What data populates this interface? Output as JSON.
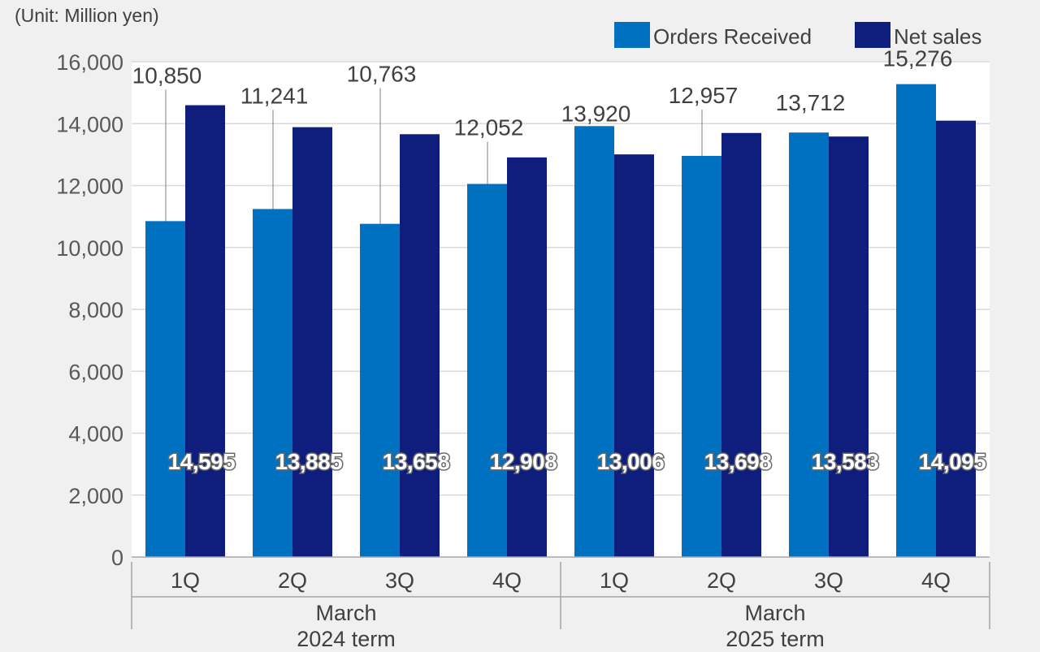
{
  "unit_label": "(Unit: Million yen)",
  "colors": {
    "orders": "#0070c0",
    "sales": "#0f1e7d",
    "grid": "#d9d9d9",
    "plot_bg": "#ffffff",
    "page_bg": "#f0f0f0",
    "connector": "#7f7f7f"
  },
  "chart_data": {
    "type": "bar",
    "categories": [
      "1Q",
      "2Q",
      "3Q",
      "4Q",
      "1Q",
      "2Q",
      "3Q",
      "4Q"
    ],
    "groups": [
      {
        "label": "March\n2024 term",
        "line1": "March",
        "line2": "2024 term",
        "span": [
          0,
          3
        ]
      },
      {
        "label": "March\n2025 term",
        "line1": "March",
        "line2": "2025 term",
        "span": [
          4,
          7
        ]
      }
    ],
    "series": [
      {
        "name": "Orders Received",
        "values": [
          10850,
          11241,
          10763,
          12052,
          13920,
          12957,
          13712,
          15276
        ],
        "labels": [
          "10,850",
          "11,241",
          "10,763",
          "12,052",
          "13,920",
          "12,957",
          "13,712",
          "15,276"
        ]
      },
      {
        "name": "Net sales",
        "values": [
          14595,
          13885,
          13658,
          12908,
          13006,
          13698,
          13583,
          14095
        ],
        "labels": [
          "14,595",
          "13,885",
          "13,658",
          "12,908",
          "13,006",
          "13,698",
          "13,583",
          "14,095"
        ]
      }
    ],
    "ylim": [
      0,
      16000
    ],
    "yticks": [
      0,
      2000,
      4000,
      6000,
      8000,
      10000,
      12000,
      14000,
      16000
    ],
    "ytick_labels": [
      "0",
      "2,000",
      "4,000",
      "6,000",
      "8,000",
      "10,000",
      "12,000",
      "14,000",
      "16,000"
    ],
    "grid": true,
    "legend": "top-right"
  }
}
